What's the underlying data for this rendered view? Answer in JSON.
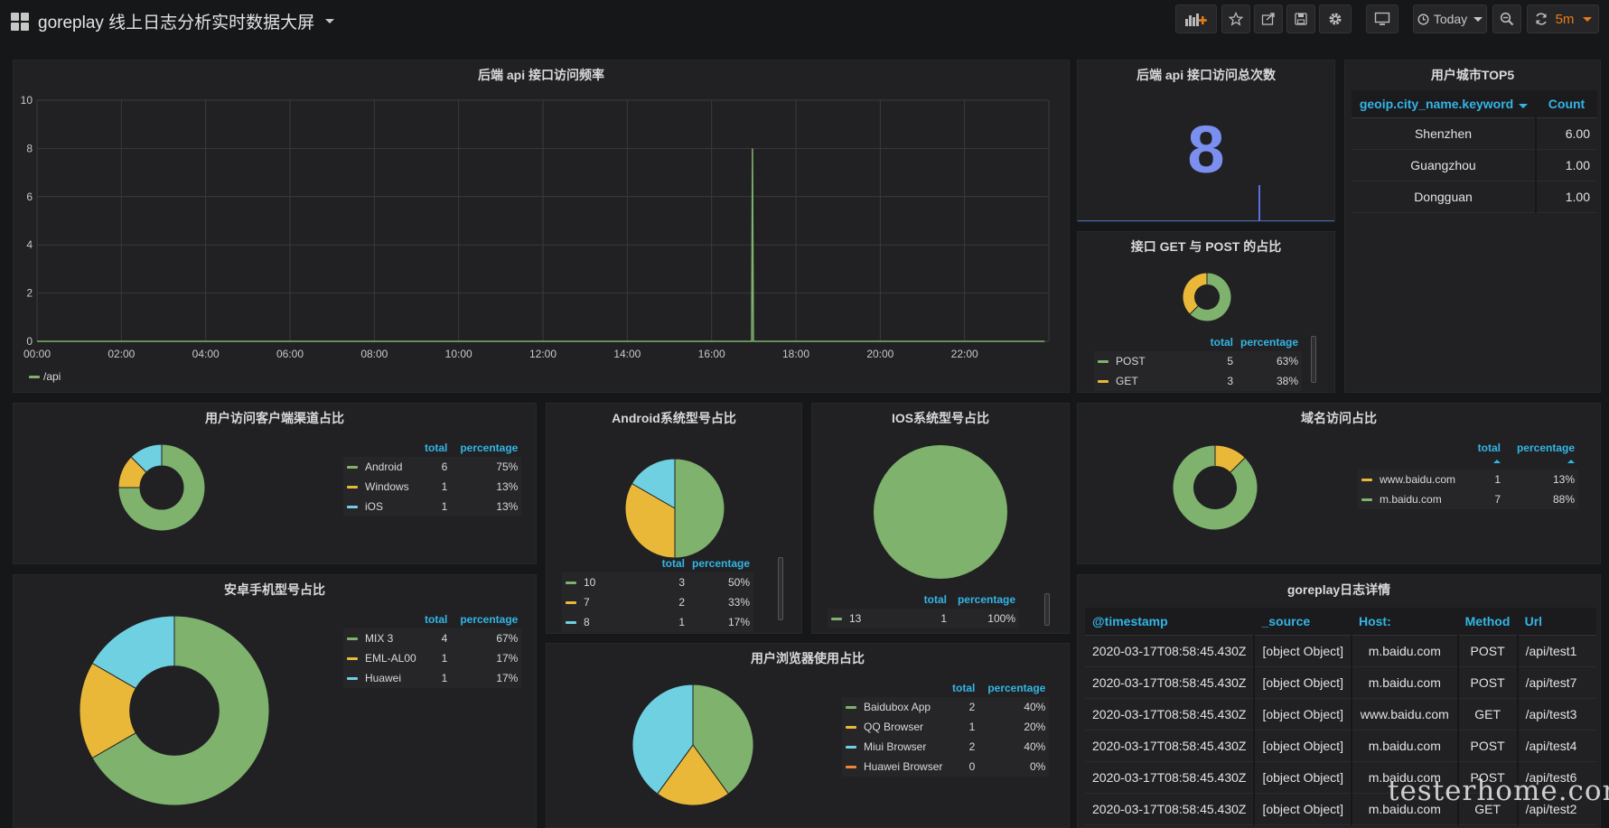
{
  "header": {
    "title": "goreplay 线上日志分析实时数据大屏",
    "time_range": "Today",
    "refresh": "5m"
  },
  "colors": {
    "green": "#7eb26d",
    "yellow": "#eab839",
    "cyan": "#6ed0e0",
    "orange": "#ef843c",
    "blue": "#5195ce",
    "stat": "#7b8ff0",
    "header_blue": "#33b5e5"
  },
  "panels": {
    "api_freq": {
      "title": "后端 api 接口访问频率",
      "legend": "/api",
      "chart_data": {
        "type": "line",
        "xlabels": [
          "00:00",
          "02:00",
          "04:00",
          "06:00",
          "08:00",
          "10:00",
          "12:00",
          "14:00",
          "16:00",
          "18:00",
          "20:00",
          "22:00"
        ],
        "yticks": [
          "0",
          "2",
          "4",
          "6",
          "8",
          "10"
        ],
        "ylim": [
          0,
          10
        ],
        "xlim_hours": [
          0,
          24
        ],
        "series": [
          {
            "name": "/api",
            "points": [
              [
                0,
                0
              ],
              [
                16.95,
                0
              ],
              [
                16.97,
                8
              ],
              [
                16.99,
                0
              ],
              [
                23.9,
                0
              ]
            ]
          }
        ]
      }
    },
    "api_total": {
      "title": "后端 api 接口访问总次数",
      "value": "8"
    },
    "city_top5": {
      "title": "用户城市TOP5",
      "columns": [
        "geoip.city_name.keyword",
        "Count"
      ],
      "rows": [
        [
          "Shenzhen",
          "6.00"
        ],
        [
          "Guangzhou",
          "1.00"
        ],
        [
          "Dongguan",
          "1.00"
        ]
      ]
    },
    "get_post": {
      "title": "接口 GET 与 POST 的占比",
      "columns": [
        "total",
        "percentage"
      ],
      "rows": [
        {
          "name": "POST",
          "total": "5",
          "pct": "63%",
          "value": 5,
          "color": "#7eb26d"
        },
        {
          "name": "GET",
          "total": "3",
          "pct": "38%",
          "value": 3,
          "color": "#eab839"
        }
      ]
    },
    "client_channel": {
      "title": "用户访问客户端渠道占比",
      "columns": [
        "total",
        "percentage"
      ],
      "rows": [
        {
          "name": "Android",
          "total": "6",
          "pct": "75%",
          "value": 6,
          "color": "#7eb26d"
        },
        {
          "name": "Windows",
          "total": "1",
          "pct": "13%",
          "value": 1,
          "color": "#eab839"
        },
        {
          "name": "iOS",
          "total": "1",
          "pct": "13%",
          "value": 1,
          "color": "#6ed0e0"
        }
      ]
    },
    "android_ver": {
      "title": "Android系统型号占比",
      "columns": [
        "total",
        "percentage"
      ],
      "rows": [
        {
          "name": "10",
          "total": "3",
          "pct": "50%",
          "value": 3,
          "color": "#7eb26d"
        },
        {
          "name": "7",
          "total": "2",
          "pct": "33%",
          "value": 2,
          "color": "#eab839"
        },
        {
          "name": "8",
          "total": "1",
          "pct": "17%",
          "value": 1,
          "color": "#6ed0e0"
        }
      ]
    },
    "ios_ver": {
      "title": "IOS系统型号占比",
      "columns": [
        "total",
        "percentage"
      ],
      "rows": [
        {
          "name": "13",
          "total": "1",
          "pct": "100%",
          "value": 1,
          "color": "#7eb26d"
        }
      ]
    },
    "domain": {
      "title": "域名访问占比",
      "columns": [
        "total",
        "percentage"
      ],
      "rows": [
        {
          "name": "www.baidu.com",
          "total": "1",
          "pct": "13%",
          "value": 1,
          "color": "#eab839"
        },
        {
          "name": "m.baidu.com",
          "total": "7",
          "pct": "88%",
          "value": 7,
          "color": "#7eb26d"
        }
      ]
    },
    "phone_model": {
      "title": "安卓手机型号占比",
      "columns": [
        "total",
        "percentage"
      ],
      "rows": [
        {
          "name": "MIX 3",
          "total": "4",
          "pct": "67%",
          "value": 4,
          "color": "#7eb26d"
        },
        {
          "name": "EML-AL00",
          "total": "1",
          "pct": "17%",
          "value": 1,
          "color": "#eab839"
        },
        {
          "name": "Huawei",
          "total": "1",
          "pct": "17%",
          "value": 1,
          "color": "#6ed0e0"
        }
      ]
    },
    "browser": {
      "title": "用户浏览器使用占比",
      "columns": [
        "total",
        "percentage"
      ],
      "rows": [
        {
          "name": "Baidubox App",
          "total": "2",
          "pct": "40%",
          "value": 2,
          "color": "#7eb26d"
        },
        {
          "name": "QQ Browser",
          "total": "1",
          "pct": "20%",
          "value": 1,
          "color": "#eab839"
        },
        {
          "name": "Miui Browser",
          "total": "2",
          "pct": "40%",
          "value": 2,
          "color": "#6ed0e0"
        },
        {
          "name": "Huawei Browser",
          "total": "0",
          "pct": "0%",
          "value": 0,
          "color": "#ef843c"
        }
      ]
    },
    "logs": {
      "title": "goreplay日志详情",
      "columns": [
        "@timestamp",
        "_source",
        "Host:",
        "Method",
        "Url"
      ],
      "rows": [
        [
          "2020-03-17T08:58:45.430Z",
          "[object Object]",
          "m.baidu.com",
          "POST",
          "/api/test1"
        ],
        [
          "2020-03-17T08:58:45.430Z",
          "[object Object]",
          "m.baidu.com",
          "POST",
          "/api/test7"
        ],
        [
          "2020-03-17T08:58:45.430Z",
          "[object Object]",
          "www.baidu.com",
          "GET",
          "/api/test3"
        ],
        [
          "2020-03-17T08:58:45.430Z",
          "[object Object]",
          "m.baidu.com",
          "POST",
          "/api/test4"
        ],
        [
          "2020-03-17T08:58:45.430Z",
          "[object Object]",
          "m.baidu.com",
          "POST",
          "/api/test6"
        ],
        [
          "2020-03-17T08:58:45.430Z",
          "[object Object]",
          "m.baidu.com",
          "GET",
          "/api/test2"
        ]
      ]
    }
  },
  "watermark": "testerhome.com"
}
